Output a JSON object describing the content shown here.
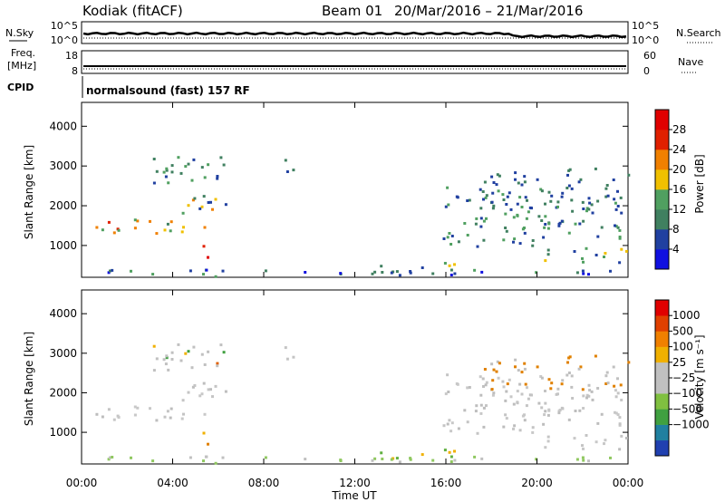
{
  "header": {
    "radar": "Kodiak (fitACF)",
    "beam": "Beam 01",
    "dates": "20/Mar/2016 – 21/Mar/2016"
  },
  "top_panels": {
    "nsky_label": "N.Sky",
    "nsky_ticks": [
      "10^5",
      "10^0"
    ],
    "nsearch_label": "N.Search",
    "nsearch_ticks": [
      "10^5",
      "10^0"
    ],
    "freq_label_1": "Freq.",
    "freq_label_2": "[MHz]",
    "freq_ticks": [
      "18",
      "8"
    ],
    "nave_label": "Nave",
    "nave_ticks": [
      "60",
      "0"
    ],
    "cpid_label": "CPID",
    "cpid_text": "normalsound (fast) 157 RF"
  },
  "chart_data": [
    {
      "type": "heatmap",
      "name": "power",
      "ylabel": "Slant Range [km]",
      "xlabel": "",
      "xlim": [
        0,
        24
      ],
      "ylim": [
        200,
        4600
      ],
      "yticks": [
        1000,
        2000,
        3000,
        4000
      ],
      "colorbar_label": "Power [dB]",
      "colorbar_ticks": [
        "4",
        "8",
        "12",
        "16",
        "20",
        "24",
        "28"
      ],
      "colors": [
        "#1010e0",
        "#2040a0",
        "#408060",
        "#50a060",
        "#f0c000",
        "#f08000",
        "#e02000",
        "#e00000"
      ]
    },
    {
      "type": "heatmap",
      "name": "velocity",
      "ylabel": "Slant Range [km]",
      "xlabel": "Time UT",
      "xlim": [
        0,
        24
      ],
      "ylim": [
        200,
        4600
      ],
      "yticks": [
        1000,
        2000,
        3000,
        4000
      ],
      "xticks": [
        "00:00",
        "04:00",
        "08:00",
        "12:00",
        "16:00",
        "20:00",
        "00:00"
      ],
      "colorbar_label": "Velocity [m s⁻¹]",
      "colorbar_ticks": [
        "1000",
        "500",
        "100",
        "25",
        "−25",
        "−100",
        "−500",
        "−1000"
      ],
      "colors": [
        "#2040b0",
        "#2080a0",
        "#40a040",
        "#80c040",
        "#c0c0c0",
        "#c0c0c0",
        "#f0b000",
        "#f08000",
        "#e04000",
        "#e00000"
      ]
    }
  ]
}
